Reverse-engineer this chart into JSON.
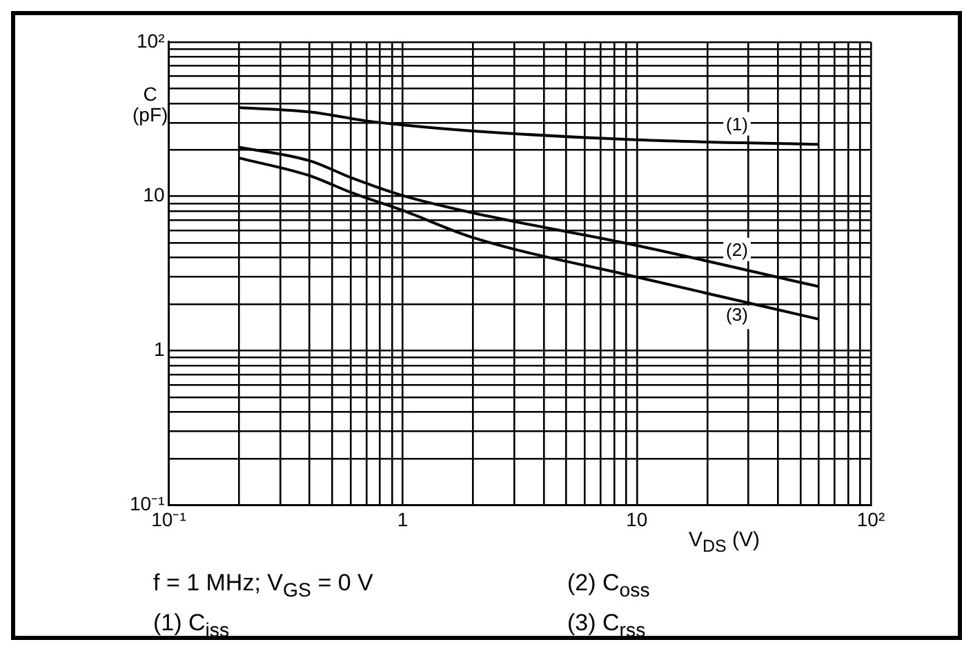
{
  "chart_data": {
    "type": "line",
    "ylabel": "C\n(pF)",
    "xlabel": "V$_{DS}$ (V)",
    "annotations": [
      "f = 1 MHz; V$_{GS}$ = 0 V",
      "(2) C$_{oss}$",
      "(1) C$_{iss}$",
      "(3) C$_{rss}$"
    ],
    "log": "xy",
    "grid": true,
    "legend": false,
    "marker": "none",
    "line_style": "solid",
    "xlim": [
      0.1,
      100
    ],
    "ylim": [
      0.1,
      100
    ],
    "xticks": [
      {
        "value": 0.1,
        "label": "10⁻¹"
      },
      {
        "value": 0.2,
        "label": null
      },
      {
        "value": 0.3,
        "label": null
      },
      {
        "value": 0.4,
        "label": null
      },
      {
        "value": 0.5,
        "label": null
      },
      {
        "value": 0.6,
        "label": null
      },
      {
        "value": 0.7,
        "label": null
      },
      {
        "value": 0.8,
        "label": null
      },
      {
        "value": 0.9,
        "label": null
      },
      1,
      {
        "value": 2,
        "label": null
      },
      {
        "value": 3,
        "label": null
      },
      {
        "value": 4,
        "label": null
      },
      {
        "value": 5,
        "label": null
      },
      {
        "value": 6,
        "label": null
      },
      {
        "value": 7,
        "label": null
      },
      {
        "value": 8,
        "label": null
      },
      {
        "value": 9,
        "label": null
      },
      10,
      {
        "value": 20,
        "label": null
      },
      {
        "value": 30,
        "label": null
      },
      {
        "value": 40,
        "label": null
      },
      {
        "value": 50,
        "label": null
      },
      {
        "value": 60,
        "label": null
      },
      {
        "value": 70,
        "label": null
      },
      {
        "value": 80,
        "label": null
      },
      {
        "value": 90,
        "label": null
      },
      {
        "value": 100,
        "label": "10²"
      }
    ],
    "yticks": [
      {
        "value": 0.1,
        "label": "10⁻¹"
      },
      {
        "value": 0.2,
        "label": null
      },
      {
        "value": 0.3,
        "label": null
      },
      {
        "value": 0.4,
        "label": null
      },
      {
        "value": 0.5,
        "label": null
      },
      {
        "value": 0.6,
        "label": null
      },
      {
        "value": 0.7,
        "label": null
      },
      {
        "value": 0.8,
        "label": null
      },
      {
        "value": 0.9,
        "label": null
      },
      1,
      {
        "value": 2,
        "label": null
      },
      {
        "value": 3,
        "label": null
      },
      {
        "value": 4,
        "label": null
      },
      {
        "value": 5,
        "label": null
      },
      {
        "value": 6,
        "label": null
      },
      {
        "value": 7,
        "label": null
      },
      {
        "value": 8,
        "label": null
      },
      {
        "value": 9,
        "label": null
      },
      10,
      {
        "value": 20,
        "label": null
      },
      {
        "value": 30,
        "label": null
      },
      {
        "value": 40,
        "label": null
      },
      {
        "value": 50,
        "label": null
      },
      {
        "value": 60,
        "label": null
      },
      {
        "value": 70,
        "label": null
      },
      {
        "value": 80,
        "label": null
      },
      {
        "value": 90,
        "label": null
      },
      {
        "value": 100,
        "label": "10²"
      }
    ],
    "series": [
      {
        "name": "(1)",
        "color": "#000000",
        "x": [
          0.2,
          0.4,
          0.71,
          1,
          2,
          10,
          60
        ],
        "values": [
          37.6,
          35.2,
          30.7,
          29.0,
          26.5,
          23.2,
          21.7
        ]
      },
      {
        "name": "(2)",
        "color": "#000000",
        "x": [
          0.2,
          0.4,
          0.61,
          1,
          2,
          10,
          60
        ],
        "values": [
          20.8,
          17.0,
          13.1,
          10.1,
          7.8,
          4.8,
          2.6
        ]
      },
      {
        "name": "(3)",
        "color": "#000000",
        "x": [
          0.2,
          0.4,
          0.61,
          1,
          2,
          10,
          60
        ],
        "values": [
          17.7,
          13.6,
          10.5,
          8.1,
          5.4,
          3.0,
          1.6
        ]
      }
    ]
  }
}
